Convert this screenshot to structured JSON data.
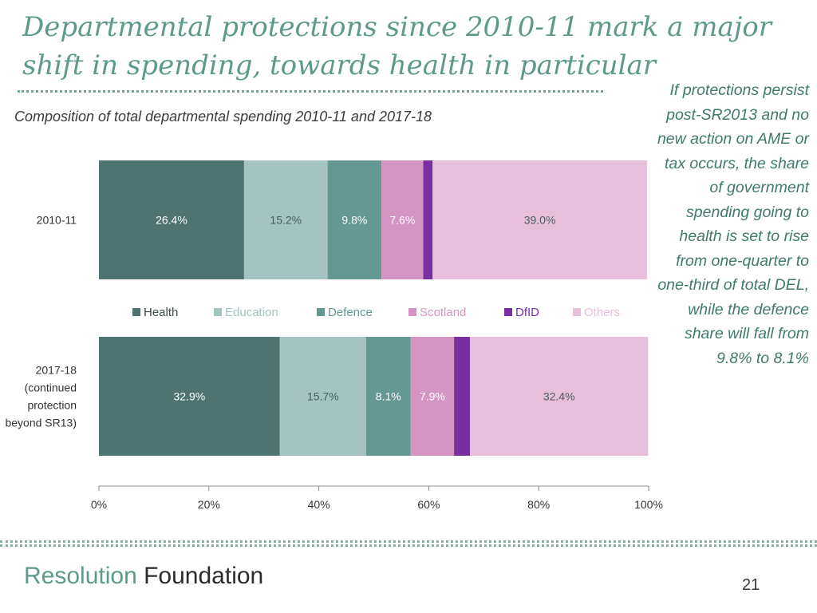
{
  "slide": {
    "title_line1": "Departmental protections since 2010-11 mark a major",
    "title_line2": "shift in spending, towards health in particular",
    "side_note": "If protections persist post-SR2013 and no new action on AME or tax occurs, the share of government spending going to health is set to rise from one-quarter to one-third of total DEL, while the defence share will fall from 9.8% to 8.1%",
    "footer_logo_part1": "Resolution",
    "footer_logo_part2": "Foundation",
    "page_number": "21"
  },
  "chart_data": {
    "type": "bar",
    "orientation": "horizontal",
    "stacked": true,
    "title": "Composition of total departmental spending 2010-11 and 2017-18",
    "categories": [
      [
        "2010-11"
      ],
      [
        "2017-18",
        "(continued",
        "protection",
        "beyond SR13)"
      ]
    ],
    "series": [
      {
        "name": "Health",
        "color": "#4d7470",
        "values": [
          26.4,
          32.9
        ],
        "labels": [
          "26.4%",
          "32.9%"
        ]
      },
      {
        "name": "Education",
        "color": "#a3c4c0",
        "values": [
          15.2,
          15.7
        ],
        "labels": [
          "15.2%",
          "15.7%"
        ]
      },
      {
        "name": "Defence",
        "color": "#649893",
        "values": [
          9.8,
          8.1
        ],
        "labels": [
          "9.8%",
          "8.1%"
        ]
      },
      {
        "name": "Scotland",
        "color": "#d595c2",
        "values": [
          7.6,
          7.9
        ],
        "labels": [
          "7.6%",
          "7.9%"
        ]
      },
      {
        "name": "DfID",
        "color": "#7a2fa0",
        "values": [
          1.7,
          2.9
        ],
        "labels": [
          "",
          ""
        ]
      },
      {
        "name": "Others",
        "color": "#e7bfdb",
        "values": [
          39.0,
          32.4
        ],
        "labels": [
          "39.0%",
          "32.4%"
        ]
      }
    ],
    "xlim": [
      0,
      100
    ],
    "xticks": [
      0,
      20,
      40,
      60,
      80,
      100
    ],
    "xtick_labels": [
      "0%",
      "20%",
      "40%",
      "60%",
      "80%",
      "100%"
    ],
    "legend_position": "between-bars"
  }
}
